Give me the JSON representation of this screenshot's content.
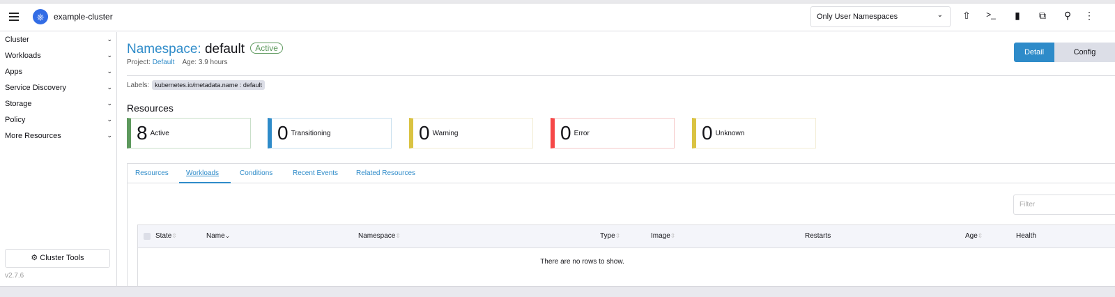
{
  "header": {
    "cluster_name": "example-cluster",
    "namespace_filter": "Only User Namespaces",
    "icons": [
      "upload-icon",
      "terminal-icon",
      "file-icon",
      "copy-icon",
      "search-icon",
      "more-vertical-icon"
    ]
  },
  "sidebar": {
    "items": [
      {
        "label": "Cluster"
      },
      {
        "label": "Workloads"
      },
      {
        "label": "Apps"
      },
      {
        "label": "Service Discovery"
      },
      {
        "label": "Storage"
      },
      {
        "label": "Policy"
      },
      {
        "label": "More Resources"
      }
    ],
    "cluster_tools": "Cluster Tools",
    "version": "v2.7.6"
  },
  "page": {
    "title_prefix": "Namespace:",
    "title_name": "default",
    "status": "Active",
    "project_label": "Project:",
    "project": "Default",
    "age": "Age: 3.9 hours",
    "labels_label": "Labels:",
    "label_chip": "kubernetes.io/metadata.name : default",
    "detail": "Detail",
    "config": "Config"
  },
  "resources": {
    "heading": "Resources",
    "cards": [
      {
        "count": "8",
        "label": "Active",
        "color": "#5d995d"
      },
      {
        "count": "0",
        "label": "Transitioning",
        "color": "#2e8bc9"
      },
      {
        "count": "0",
        "label": "Warning",
        "color": "#dac342"
      },
      {
        "count": "0",
        "label": "Error",
        "color": "#f64747"
      },
      {
        "count": "0",
        "label": "Unknown",
        "color": "#dac342"
      }
    ]
  },
  "tabs": [
    {
      "label": "Resources"
    },
    {
      "label": "Workloads",
      "active": true
    },
    {
      "label": "Conditions"
    },
    {
      "label": "Recent Events"
    },
    {
      "label": "Related Resources"
    }
  ],
  "table": {
    "filter_placeholder": "Filter",
    "columns": [
      "State",
      "Name",
      "Namespace",
      "Type",
      "Image",
      "Restarts",
      "Age",
      "Health"
    ],
    "empty": "There are no rows to show."
  }
}
